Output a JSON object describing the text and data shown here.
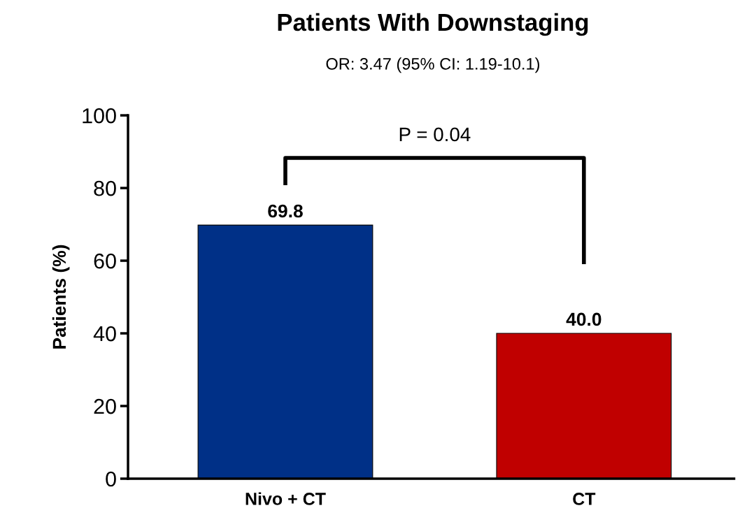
{
  "chart_data": {
    "type": "bar",
    "title": "Patients With Downstaging",
    "subtitle": "OR: 3.47 (95% CI: 1.19-10.1)",
    "ylabel": "Patients (%)",
    "categories": [
      "Nivo + CT",
      "CT"
    ],
    "values": [
      69.8,
      40.0
    ],
    "colors": [
      "#003087",
      "#c00000"
    ],
    "value_labels": [
      "69.8",
      "40.0"
    ],
    "ylim": [
      0,
      100
    ],
    "yticks": [
      0,
      20,
      40,
      60,
      80,
      100
    ],
    "grid": false,
    "annotations": [
      "P = 0.04"
    ]
  }
}
